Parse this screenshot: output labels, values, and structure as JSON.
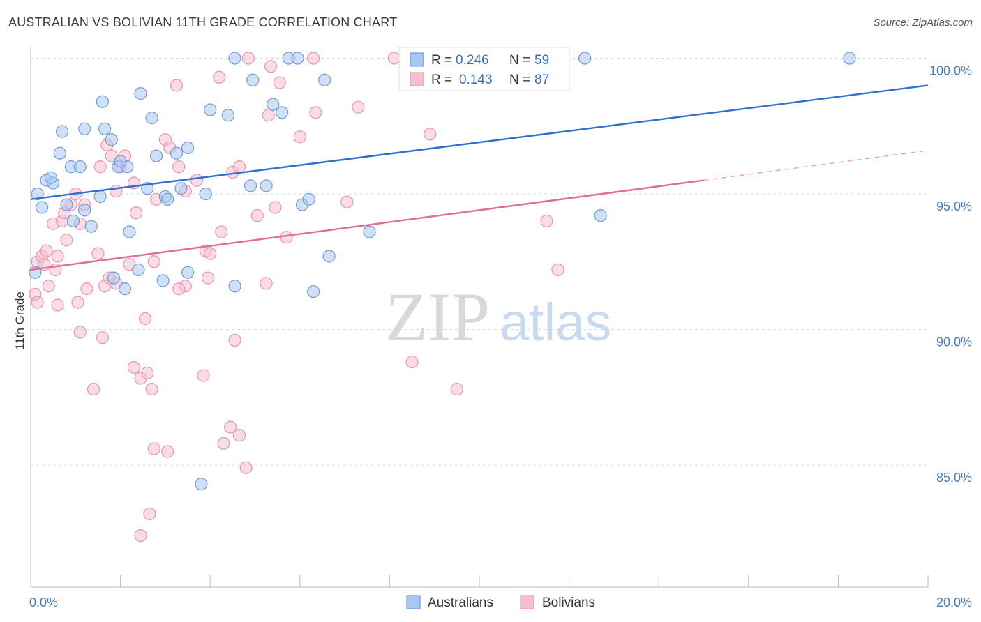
{
  "title": "AUSTRALIAN VS BOLIVIAN 11TH GRADE CORRELATION CHART",
  "source": "Source: ZipAtlas.com",
  "watermark": {
    "zip": "ZIP",
    "atlas": "atlas"
  },
  "colors": {
    "blue_fill": "#a9c8f0",
    "blue_stroke": "#6f9bd8",
    "blue_line": "#2f6fd0",
    "pink_fill": "#f6bfd0",
    "pink_stroke": "#e994b2",
    "pink_line": "#e06b96",
    "grid": "#dcdcdc",
    "tick_label": "#4a78c0"
  },
  "legend": {
    "r_label": "R =",
    "n_label": "N =",
    "series": [
      {
        "r": "0.246",
        "n": "59"
      },
      {
        "r": "0.143",
        "n": "87"
      }
    ]
  },
  "chart_data": {
    "type": "scatter",
    "ylabel": "11th Grade",
    "xlim": [
      0.0,
      20.0
    ],
    "ylim": [
      80.5,
      100.4
    ],
    "yticks": [
      {
        "value": 100.0,
        "label": "100.0%"
      },
      {
        "value": 95.0,
        "label": "95.0%"
      },
      {
        "value": 90.0,
        "label": "90.0%"
      },
      {
        "value": 85.0,
        "label": "85.0%"
      }
    ],
    "xticks": [
      {
        "value": 0.0,
        "label": "0.0%"
      },
      {
        "value": 20.0,
        "label": "20.0%"
      }
    ],
    "grid": true,
    "legend_position": "top-center",
    "series": [
      {
        "name": "Australians",
        "trend": {
          "x": [
            0.0,
            20.0
          ],
          "y": [
            94.8,
            99.0
          ]
        },
        "points": [
          [
            0.15,
            95.0
          ],
          [
            0.25,
            94.5
          ],
          [
            0.35,
            95.5
          ],
          [
            0.5,
            95.4
          ],
          [
            0.45,
            95.6
          ],
          [
            0.7,
            97.3
          ],
          [
            0.65,
            96.5
          ],
          [
            0.9,
            96.0
          ],
          [
            1.1,
            96.0
          ],
          [
            1.2,
            97.4
          ],
          [
            1.65,
            97.4
          ],
          [
            1.8,
            97.0
          ],
          [
            1.6,
            98.4
          ],
          [
            2.45,
            98.7
          ],
          [
            2.7,
            97.8
          ],
          [
            0.8,
            94.6
          ],
          [
            0.95,
            94.0
          ],
          [
            1.2,
            94.4
          ],
          [
            1.35,
            93.8
          ],
          [
            1.55,
            94.9
          ],
          [
            1.95,
            96.0
          ],
          [
            2.15,
            96.0
          ],
          [
            2.6,
            95.2
          ],
          [
            2.8,
            96.4
          ],
          [
            3.0,
            94.9
          ],
          [
            3.05,
            94.8
          ],
          [
            3.25,
            96.5
          ],
          [
            3.35,
            95.2
          ],
          [
            3.5,
            96.7
          ],
          [
            3.9,
            95.0
          ],
          [
            4.0,
            98.1
          ],
          [
            4.4,
            97.9
          ],
          [
            4.55,
            100.0
          ],
          [
            4.9,
            95.3
          ],
          [
            4.95,
            99.2
          ],
          [
            5.25,
            95.3
          ],
          [
            5.4,
            98.3
          ],
          [
            5.6,
            98.0
          ],
          [
            5.75,
            100.0
          ],
          [
            5.95,
            100.0
          ],
          [
            6.05,
            94.6
          ],
          [
            6.2,
            94.8
          ],
          [
            6.55,
            99.2
          ],
          [
            6.65,
            92.7
          ],
          [
            7.55,
            93.6
          ],
          [
            12.35,
            100.0
          ],
          [
            12.7,
            94.2
          ],
          [
            18.25,
            100.0
          ],
          [
            1.85,
            91.9
          ],
          [
            2.1,
            91.5
          ],
          [
            2.2,
            93.6
          ],
          [
            2.4,
            92.2
          ],
          [
            2.95,
            91.8
          ],
          [
            3.5,
            92.1
          ],
          [
            4.55,
            91.6
          ],
          [
            6.3,
            91.4
          ],
          [
            3.8,
            84.3
          ],
          [
            0.1,
            92.1
          ],
          [
            2.0,
            96.2
          ]
        ]
      },
      {
        "name": "Bolivians",
        "trend": {
          "x": [
            0.0,
            15.0
          ],
          "y": [
            92.2,
            95.5
          ]
        },
        "trend_extension": {
          "x": [
            15.0,
            20.0
          ],
          "y": [
            95.5,
            96.6
          ]
        },
        "points": [
          [
            0.1,
            91.3
          ],
          [
            0.15,
            92.5
          ],
          [
            0.25,
            92.7
          ],
          [
            0.4,
            91.6
          ],
          [
            0.35,
            92.9
          ],
          [
            0.55,
            92.2
          ],
          [
            0.6,
            92.7
          ],
          [
            0.5,
            93.9
          ],
          [
            0.7,
            94.0
          ],
          [
            0.75,
            94.3
          ],
          [
            0.8,
            93.3
          ],
          [
            0.9,
            94.6
          ],
          [
            1.0,
            95.0
          ],
          [
            1.1,
            93.9
          ],
          [
            1.2,
            94.6
          ],
          [
            1.05,
            91.0
          ],
          [
            1.25,
            91.5
          ],
          [
            1.5,
            92.8
          ],
          [
            1.55,
            96.0
          ],
          [
            1.7,
            96.8
          ],
          [
            1.8,
            96.4
          ],
          [
            1.9,
            95.1
          ],
          [
            2.0,
            96.0
          ],
          [
            2.1,
            96.4
          ],
          [
            2.35,
            94.3
          ],
          [
            1.65,
            91.6
          ],
          [
            2.2,
            92.4
          ],
          [
            2.55,
            90.4
          ],
          [
            2.75,
            92.5
          ],
          [
            2.8,
            94.8
          ],
          [
            3.0,
            97.0
          ],
          [
            3.1,
            96.7
          ],
          [
            3.25,
            99.0
          ],
          [
            3.3,
            96.0
          ],
          [
            3.45,
            95.1
          ],
          [
            3.7,
            95.5
          ],
          [
            3.9,
            92.9
          ],
          [
            4.2,
            99.3
          ],
          [
            4.25,
            93.6
          ],
          [
            4.5,
            95.8
          ],
          [
            4.65,
            96.0
          ],
          [
            4.85,
            100.0
          ],
          [
            5.05,
            94.2
          ],
          [
            5.3,
            97.9
          ],
          [
            5.45,
            94.5
          ],
          [
            5.55,
            99.1
          ],
          [
            5.7,
            93.4
          ],
          [
            6.0,
            97.1
          ],
          [
            6.3,
            100.0
          ],
          [
            6.35,
            98.0
          ],
          [
            7.05,
            94.7
          ],
          [
            7.3,
            98.2
          ],
          [
            8.1,
            100.0
          ],
          [
            8.5,
            88.8
          ],
          [
            8.9,
            97.2
          ],
          [
            9.5,
            87.8
          ],
          [
            11.5,
            94.0
          ],
          [
            11.75,
            92.2
          ],
          [
            0.6,
            90.9
          ],
          [
            1.1,
            89.9
          ],
          [
            1.4,
            87.8
          ],
          [
            1.6,
            89.7
          ],
          [
            2.3,
            88.6
          ],
          [
            2.45,
            88.2
          ],
          [
            2.6,
            88.4
          ],
          [
            2.7,
            87.8
          ],
          [
            2.75,
            85.6
          ],
          [
            3.05,
            85.5
          ],
          [
            3.85,
            88.3
          ],
          [
            4.3,
            85.8
          ],
          [
            4.45,
            86.4
          ],
          [
            4.55,
            89.6
          ],
          [
            4.65,
            86.1
          ],
          [
            4.8,
            84.9
          ],
          [
            2.65,
            83.2
          ],
          [
            2.45,
            82.4
          ],
          [
            1.9,
            91.7
          ],
          [
            1.75,
            91.9
          ],
          [
            3.45,
            91.6
          ],
          [
            3.95,
            91.9
          ],
          [
            5.25,
            91.7
          ],
          [
            0.15,
            91.0
          ],
          [
            0.3,
            92.4
          ],
          [
            3.3,
            91.5
          ],
          [
            2.3,
            95.4
          ],
          [
            4.0,
            92.8
          ],
          [
            5.35,
            99.7
          ]
        ]
      }
    ]
  }
}
